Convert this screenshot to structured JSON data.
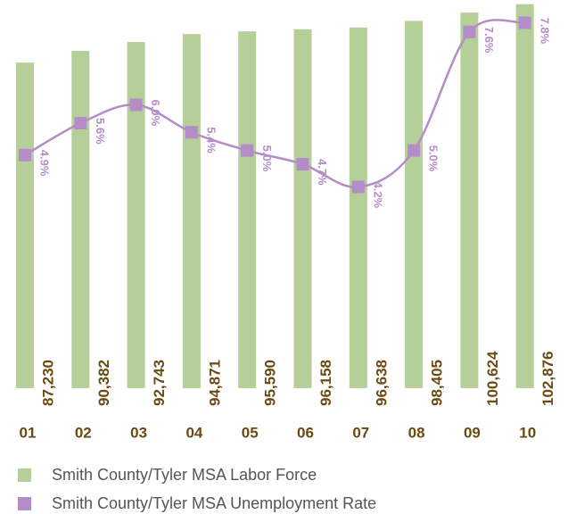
{
  "chart_data": {
    "type": "bar_line",
    "categories": [
      "01",
      "02",
      "03",
      "04",
      "05",
      "06",
      "07",
      "08",
      "09",
      "10"
    ],
    "ylim": [
      -6000,
      104000
    ],
    "y2lim": [
      -0.7,
      8.3
    ],
    "series": [
      {
        "name": "Smith County/Tyler MSA Labor Force",
        "type": "bar",
        "color": "#b5cf98",
        "values": [
          87230,
          90382,
          92743,
          94871,
          95590,
          96158,
          96638,
          98405,
          100624,
          102876
        ],
        "value_labels": [
          "87,230",
          "90,382",
          "92,743",
          "94,871",
          "95,590",
          "96,158",
          "96,638",
          "98,405",
          "100,624",
          "102,876"
        ]
      },
      {
        "name": "Smith County/Tyler MSA Unemployment Rate",
        "type": "line",
        "axis": "y2",
        "color": "#b48cc8",
        "values": [
          4.9,
          5.6,
          6.0,
          5.4,
          5.0,
          4.7,
          4.2,
          5.0,
          7.6,
          7.8
        ],
        "value_labels": [
          "4.9%",
          "5.6%",
          "6.0%",
          "5.4%",
          "5.0%",
          "4.7%",
          "4.2%",
          "5.0%",
          "7.6%",
          "7.8%"
        ]
      }
    ]
  }
}
